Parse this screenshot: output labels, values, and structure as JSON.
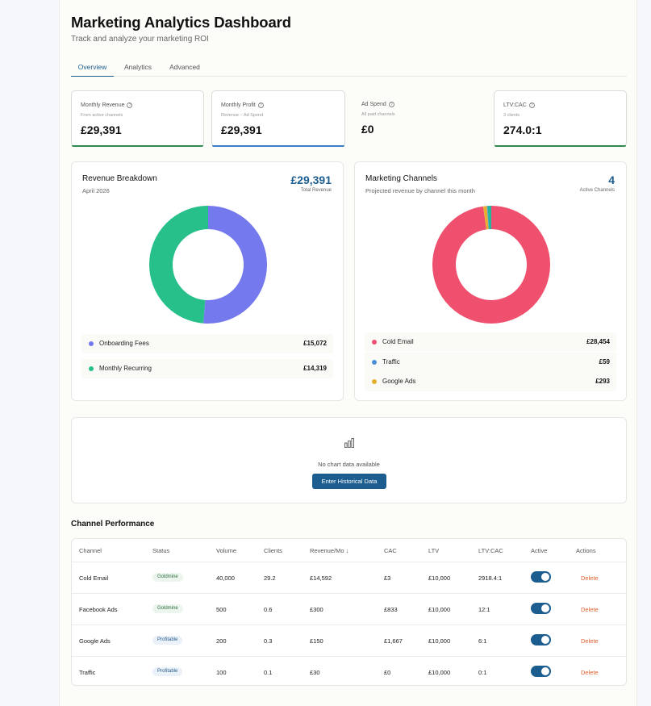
{
  "header": {
    "title": "Marketing Analytics Dashboard",
    "subtitle": "Track and analyze your marketing ROI"
  },
  "tabs": [
    {
      "label": "Overview",
      "active": true
    },
    {
      "label": "Analytics",
      "active": false
    },
    {
      "label": "Advanced",
      "active": false
    }
  ],
  "stats": [
    {
      "label": "Monthly Revenue",
      "sub": "From active channels",
      "value": "£29,391",
      "bar_color": "#2e8a4e"
    },
    {
      "label": "Monthly Profit",
      "sub": "Revenue − Ad Spend",
      "value": "£29,391",
      "bar_color": "#3c7fc8"
    },
    {
      "label": "Ad Spend",
      "sub": "All paid channels",
      "value": "£0",
      "bar_color": ""
    },
    {
      "label": "LTV:CAC",
      "sub": "3 clients",
      "value": "274.0:1",
      "bar_color": "#2e8a4e"
    }
  ],
  "revenue_breakdown": {
    "title": "Revenue Breakdown",
    "subtitle": "April 2026",
    "total": "£29,391",
    "total_label": "Total Revenue",
    "items": [
      {
        "name": "Onboarding Fees",
        "value": "£15,072",
        "amount": 15072,
        "color": "#7579ee"
      },
      {
        "name": "Monthly Recurring",
        "value": "£14,319",
        "amount": 14319,
        "color": "#28c08a"
      }
    ]
  },
  "marketing_channels": {
    "title": "Marketing Channels",
    "subtitle": "Projected revenue by channel this month",
    "count": "4",
    "count_label": "Active Channels",
    "items": [
      {
        "name": "Cold Email",
        "value": "£28,454",
        "amount": 28454,
        "color": "#ef506e"
      },
      {
        "name": "Traffic",
        "value": "£59",
        "amount": 59,
        "color": "#4a90d9"
      },
      {
        "name": "Google Ads",
        "value": "£293",
        "amount": 293,
        "color": "#e6b02e"
      }
    ],
    "extra_segments": [
      {
        "amount": 300,
        "color": "#21b79c"
      }
    ]
  },
  "empty_chart": {
    "icon": "bar-chart-icon",
    "message": "No chart data available",
    "button": "Enter Historical Data"
  },
  "channel_performance": {
    "title": "Channel Performance",
    "columns": [
      "Channel",
      "Status",
      "Volume",
      "Clients",
      "Revenue/Mo ↓",
      "CAC",
      "LTV",
      "LTV:CAC",
      "Active",
      "Actions"
    ],
    "rows": [
      {
        "channel": "Cold Email",
        "status": "Goldmine",
        "status_type": "goldmine",
        "volume": "40,000",
        "clients": "29.2",
        "revenue": "£14,592",
        "cac": "£3",
        "ltv": "£10,000",
        "ltv_cac": "2918.4:1",
        "active": true,
        "action": "Delete"
      },
      {
        "channel": "Facebook Ads",
        "status": "Goldmine",
        "status_type": "goldmine",
        "volume": "500",
        "clients": "0.6",
        "revenue": "£300",
        "cac": "£833",
        "ltv": "£10,000",
        "ltv_cac": "12:1",
        "active": true,
        "action": "Delete"
      },
      {
        "channel": "Google Ads",
        "status": "Profitable",
        "status_type": "profitable",
        "volume": "200",
        "clients": "0.3",
        "revenue": "£150",
        "cac": "£1,667",
        "ltv": "£10,000",
        "ltv_cac": "6:1",
        "active": true,
        "action": "Delete"
      },
      {
        "channel": "Traffic",
        "status": "Profitable",
        "status_type": "profitable",
        "volume": "100",
        "clients": "0.1",
        "revenue": "£30",
        "cac": "£0",
        "ltv": "£10,000",
        "ltv_cac": "0:1",
        "active": true,
        "action": "Delete"
      }
    ]
  }
}
